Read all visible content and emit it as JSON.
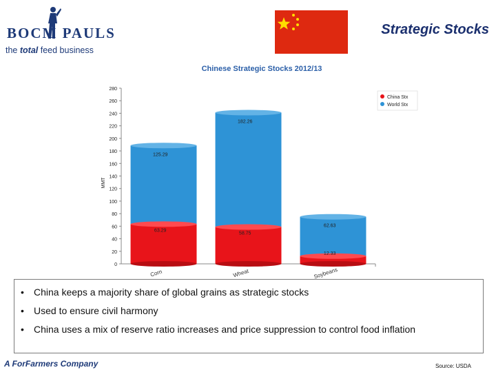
{
  "header": {
    "logo_text": "BOCM PAULS",
    "tagline_prefix": "the",
    "tagline_em": "total",
    "tagline_suffix": "feed business",
    "slide_title": "Strategic Stocks"
  },
  "chart_data": {
    "type": "bar",
    "stacked": true,
    "title": "Chinese Strategic Stocks 2012/13",
    "ylabel": "MMT",
    "xlabel": "",
    "ylim": [
      0,
      280
    ],
    "yticks": [
      0,
      20,
      40,
      60,
      80,
      100,
      120,
      140,
      160,
      180,
      200,
      220,
      240,
      260,
      280
    ],
    "categories": [
      "Corn",
      "Wheat",
      "Soybeans"
    ],
    "series": [
      {
        "name": "China Stx",
        "values": [
          63.29,
          58.75,
          12.33
        ],
        "color": "#e8141a"
      },
      {
        "name": "World Stx",
        "values": [
          125.29,
          182.26,
          62.63
        ],
        "color": "#2e93d6"
      }
    ],
    "data_labels": [
      {
        "china": "63.29",
        "world": "125.29"
      },
      {
        "china": "58.75",
        "world": "182.26"
      },
      {
        "china": "12.33",
        "world": "62.63"
      }
    ],
    "legend_position": "top-right",
    "grid": false
  },
  "bullets": [
    "China keeps a majority share of global grains as strategic stocks",
    "Used to ensure civil harmony",
    "China uses a mix of reserve ratio increases and price suppression to control food inflation"
  ],
  "bullet_symbol": "•",
  "footer": {
    "company": "A ForFarmers Company",
    "source": "Source: USDA"
  }
}
